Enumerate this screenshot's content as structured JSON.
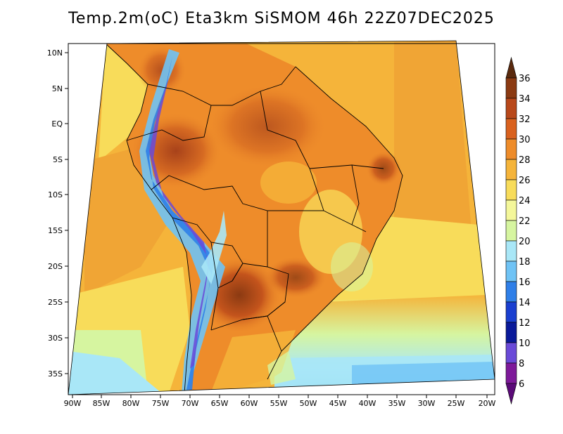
{
  "title": "Temp.2m(oC) Eta3km SiSMOM 46h 22Z07DEC2025",
  "map": {
    "lat_labels": [
      "10N",
      "5N",
      "EQ",
      "5S",
      "10S",
      "15S",
      "20S",
      "25S",
      "30S",
      "35S"
    ],
    "lon_labels": [
      "90W",
      "85W",
      "80W",
      "75W",
      "70W",
      "65W",
      "60W",
      "55W",
      "50W",
      "45W",
      "40W",
      "35W",
      "30W",
      "25W",
      "20W"
    ]
  },
  "colorbar": {
    "labels": [
      "36",
      "34",
      "32",
      "30",
      "28",
      "26",
      "24",
      "22",
      "20",
      "18",
      "16",
      "14",
      "12",
      "10",
      "8",
      "6"
    ],
    "colors": [
      "#5a2a0e",
      "#8b3a12",
      "#b8481a",
      "#d9611e",
      "#ee8c2a",
      "#f5b43a",
      "#f8dc5a",
      "#f4f79a",
      "#d6f5a0",
      "#a9e7f7",
      "#6fc3f5",
      "#2f7fe8",
      "#1a3fd0",
      "#0a1a9a",
      "#6a4ad8",
      "#7e1a9a",
      "#5b0a78"
    ]
  }
}
